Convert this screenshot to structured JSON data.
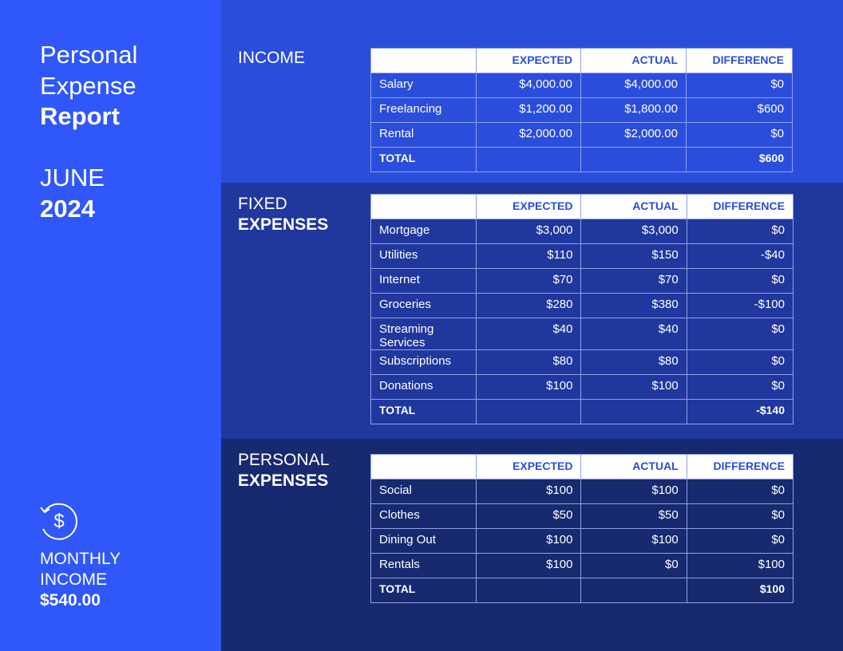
{
  "sidebar": {
    "title_line1": "Personal",
    "title_line2": "Expense",
    "title_bold": "Report",
    "month": "JUNE",
    "year": "2024",
    "summary_line1": "MONTHLY",
    "summary_line2": "INCOME",
    "summary_value": "$540.00"
  },
  "sections": [
    {
      "title": "INCOME",
      "columns": [
        "EXPECTED",
        "ACTUAL",
        "DIFFERENCE"
      ],
      "rows": [
        [
          "Salary",
          "$4,000.00",
          "$4,000.00",
          "$0"
        ],
        [
          "Freelancing",
          "$1,200.00",
          "$1,800.00",
          "$600"
        ],
        [
          "Rental",
          "$2,000.00",
          "$2,000.00",
          "$0"
        ]
      ],
      "total": {
        "label": "TOTAL",
        "difference": "$600"
      }
    },
    {
      "title": "FIXED",
      "title_bold": "EXPENSES",
      "columns": [
        "EXPECTED",
        "ACTUAL",
        "DIFFERENCE"
      ],
      "rows": [
        [
          "Mortgage",
          "$3,000",
          "$3,000",
          "$0"
        ],
        [
          "Utilities",
          "$110",
          "$150",
          "-$40"
        ],
        [
          "Internet",
          "$70",
          "$70",
          "$0"
        ],
        [
          "Groceries",
          "$280",
          "$380",
          "-$100"
        ],
        [
          "Streaming Services",
          "$40",
          "$40",
          "$0"
        ],
        [
          "Subscriptions",
          "$80",
          "$80",
          "$0"
        ],
        [
          "Donations",
          "$100",
          "$100",
          "$0"
        ]
      ],
      "total": {
        "label": "TOTAL",
        "difference": "-$140"
      }
    },
    {
      "title": "PERSONAL",
      "title_bold": "EXPENSES",
      "columns": [
        "EXPECTED",
        "ACTUAL",
        "DIFFERENCE"
      ],
      "rows": [
        [
          "Social",
          "$100",
          "$100",
          "$0"
        ],
        [
          "Clothes",
          "$50",
          "$50",
          "$0"
        ],
        [
          "Dining Out",
          "$100",
          "$100",
          "$0"
        ],
        [
          "Rentals",
          "$100",
          "$0",
          "$100"
        ]
      ],
      "total": {
        "label": "TOTAL",
        "difference": "$100"
      }
    }
  ]
}
